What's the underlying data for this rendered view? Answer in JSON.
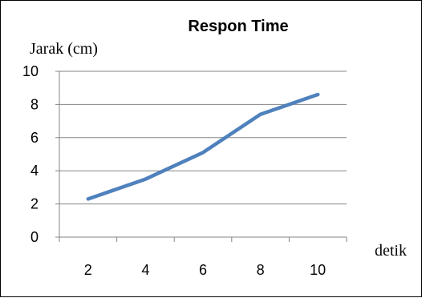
{
  "chart_data": {
    "type": "line",
    "title": "Respon Time",
    "ylabel": "Jarak (cm)",
    "xlabel": "detik",
    "categories": [
      "2",
      "4",
      "6",
      "8",
      "10"
    ],
    "x": [
      2,
      4,
      6,
      8,
      10
    ],
    "y": [
      2.3,
      3.5,
      5.1,
      7.4,
      8.6
    ],
    "ylim": [
      0,
      10
    ],
    "yticks": [
      "0",
      "2",
      "4",
      "6",
      "8",
      "10"
    ],
    "grid": "horizontal",
    "line_color": "#4f81bd"
  }
}
